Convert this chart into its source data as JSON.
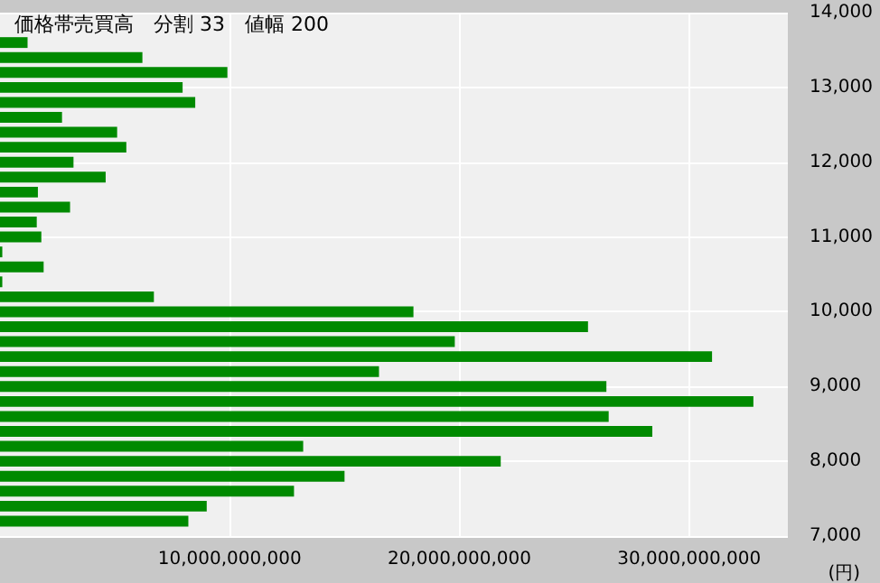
{
  "chart_data": {
    "type": "bar",
    "orientation": "horizontal",
    "title": "価格帯売買高　分割 33　値幅 200",
    "xlabel": "(円)",
    "x": [
      7200,
      7400,
      7600,
      7800,
      8000,
      8200,
      8400,
      8600,
      8800,
      9000,
      9200,
      9400,
      9600,
      9800,
      10000,
      10200,
      10400,
      10600,
      10800,
      11000,
      11200,
      11400,
      11600,
      11800,
      12000,
      12200,
      12400,
      12600,
      12800,
      13000,
      13200,
      13400,
      13600
    ],
    "values": [
      8200000000,
      9000000000,
      12800000000,
      15000000000,
      21800000000,
      13200000000,
      28400000000,
      26500000000,
      32800000000,
      26400000000,
      16500000000,
      31000000000,
      19800000000,
      25600000000,
      18000000000,
      6700000000,
      100000000,
      1900000000,
      100000000,
      1800000000,
      1600000000,
      3050000000,
      1650000000,
      4600000000,
      3200000000,
      5500000000,
      5100000000,
      2700000000,
      8500000000,
      7950000000,
      9900000000,
      6200000000,
      1200000000
    ],
    "color": "#008a00",
    "xlim": [
      0,
      34300000000
    ],
    "xticks": [
      {
        "value": 10000000000,
        "label": "10,000,000,000"
      },
      {
        "value": 20000000000,
        "label": "20,000,000,000"
      },
      {
        "value": 30000000000,
        "label": "30,000,000,000"
      }
    ],
    "ylim": [
      7000,
      14000
    ],
    "yticks": [
      {
        "value": 7000,
        "label": "7,000"
      },
      {
        "value": 8000,
        "label": "8,000"
      },
      {
        "value": 9000,
        "label": "9,000"
      },
      {
        "value": 10000,
        "label": "10,000"
      },
      {
        "value": 11000,
        "label": "11,000"
      },
      {
        "value": 12000,
        "label": "12,000"
      },
      {
        "value": 13000,
        "label": "13,000"
      },
      {
        "value": 14000,
        "label": "14,000"
      }
    ],
    "grid": true
  }
}
